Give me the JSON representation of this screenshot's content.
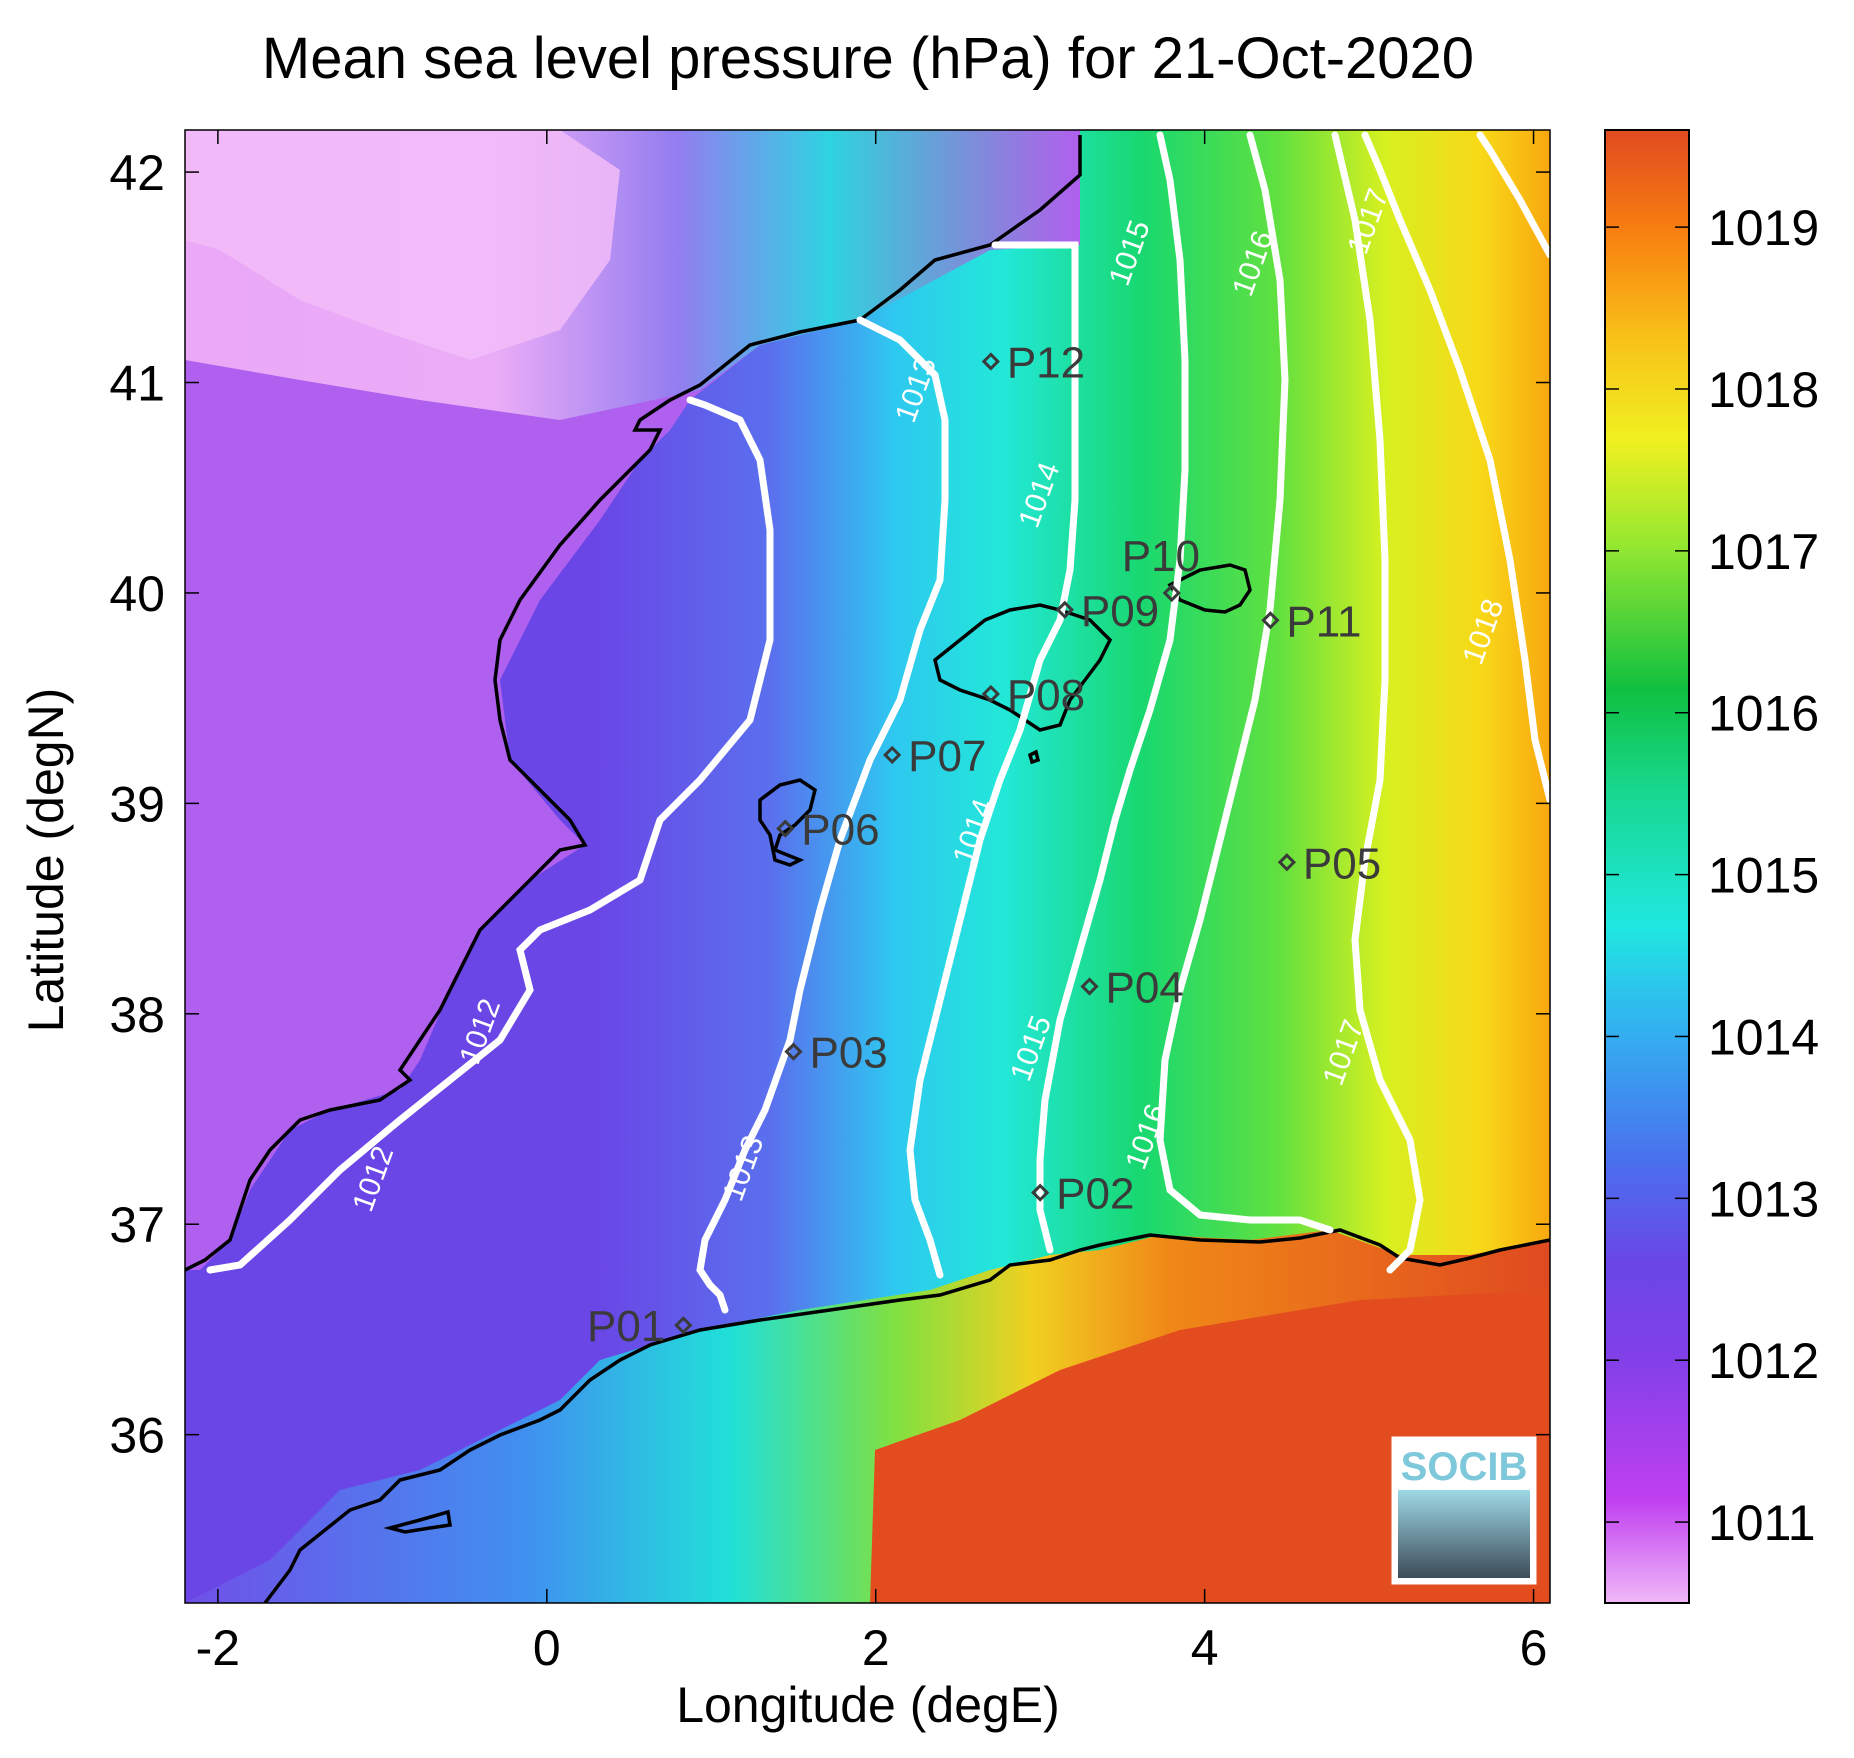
{
  "title": "Mean sea level pressure (hPa) for 21-Oct-2020",
  "xlabel": "Longitude (degE)",
  "ylabel": "Latitude (degN)",
  "x_ticks": [
    "-2",
    "0",
    "2",
    "4",
    "6"
  ],
  "y_ticks": [
    "36",
    "37",
    "38",
    "39",
    "40",
    "41",
    "42"
  ],
  "colorbar": {
    "ticks": [
      "1011",
      "1012",
      "1013",
      "1014",
      "1015",
      "1016",
      "1017",
      "1018",
      "1019"
    ],
    "colors": [
      "#f0b0f8",
      "#c040f0",
      "#6a3fe0",
      "#3a7ff0",
      "#20e8e0",
      "#10d070",
      "#b8f020",
      "#f0e020",
      "#f8a010",
      "#e04a20"
    ]
  },
  "logo": {
    "text": "SOCIB"
  },
  "chart_data": {
    "type": "map",
    "x_range": [
      -2.2,
      6.1
    ],
    "y_range": [
      35.2,
      42.2
    ],
    "stations": [
      {
        "name": "P01",
        "lon": 0.83,
        "lat": 36.52
      },
      {
        "name": "P02",
        "lon": 3.0,
        "lat": 37.15
      },
      {
        "name": "P03",
        "lon": 1.5,
        "lat": 37.82
      },
      {
        "name": "P04",
        "lon": 3.3,
        "lat": 38.13
      },
      {
        "name": "P05",
        "lon": 4.5,
        "lat": 38.72
      },
      {
        "name": "P06",
        "lon": 1.45,
        "lat": 38.88
      },
      {
        "name": "P07",
        "lon": 2.1,
        "lat": 39.23
      },
      {
        "name": "P08",
        "lon": 2.7,
        "lat": 39.52
      },
      {
        "name": "P09",
        "lon": 3.15,
        "lat": 39.92
      },
      {
        "name": "P10",
        "lon": 3.8,
        "lat": 40.0
      },
      {
        "name": "P11",
        "lon": 4.4,
        "lat": 39.87
      },
      {
        "name": "P12",
        "lon": 2.7,
        "lat": 41.1
      }
    ],
    "contour_labels": [
      {
        "text": "1012",
        "lon": -1.0,
        "lat": 37.2
      },
      {
        "text": "1012",
        "lon": -0.35,
        "lat": 37.9
      },
      {
        "text": "1013",
        "lon": 1.25,
        "lat": 37.25
      },
      {
        "text": "1013",
        "lon": 2.3,
        "lat": 40.95
      },
      {
        "text": "1014",
        "lon": 2.65,
        "lat": 38.85
      },
      {
        "text": "1014",
        "lon": 3.05,
        "lat": 40.45
      },
      {
        "text": "1015",
        "lon": 3.0,
        "lat": 37.82
      },
      {
        "text": "1015",
        "lon": 3.6,
        "lat": 41.6
      },
      {
        "text": "1016",
        "lon": 3.7,
        "lat": 37.4
      },
      {
        "text": "1016",
        "lon": 4.35,
        "lat": 41.55
      },
      {
        "text": "1017",
        "lon": 4.9,
        "lat": 37.8
      },
      {
        "text": "1017",
        "lon": 5.05,
        "lat": 41.75
      },
      {
        "text": "1018",
        "lon": 5.75,
        "lat": 39.8
      }
    ]
  }
}
